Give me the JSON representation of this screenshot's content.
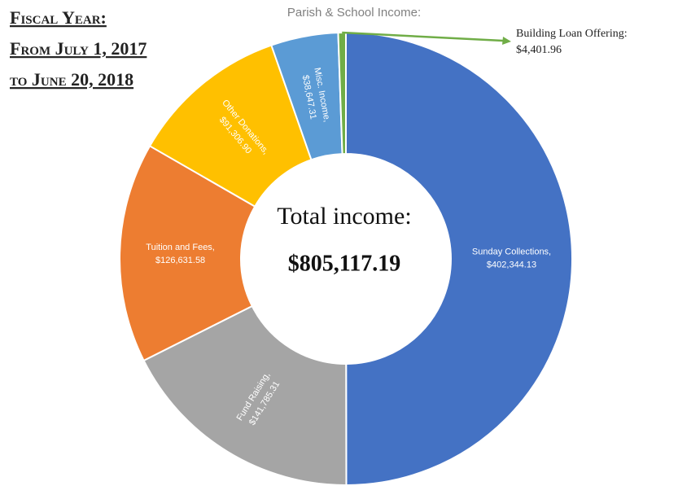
{
  "heading": [
    "Fiscal Year:",
    "From July 1, 2017",
    "to June 20, 2018"
  ],
  "chart_data": {
    "type": "donut",
    "title": "Parish & School Income:",
    "center_text": [
      "Total income:",
      "$805,117.19"
    ],
    "categories": [
      "Sunday Collections,",
      "Fund Raising,",
      "Tuition and Fees,",
      "Other Donations,",
      "Misc. Income,",
      "Building Loan Offering:"
    ],
    "values": [
      402344.13,
      141785.31,
      126631.58,
      91306.9,
      38647.31,
      4401.96
    ],
    "value_labels": [
      "$402,344.13",
      "$141,785.31",
      "$126,631.58",
      "$91,306.90",
      "$38,647.31",
      "$4,401.96"
    ],
    "colors": [
      "#4472c4",
      "#a5a5a5",
      "#ed7d31",
      "#ffc000",
      "#5b9bd5",
      "#70ad47"
    ]
  }
}
